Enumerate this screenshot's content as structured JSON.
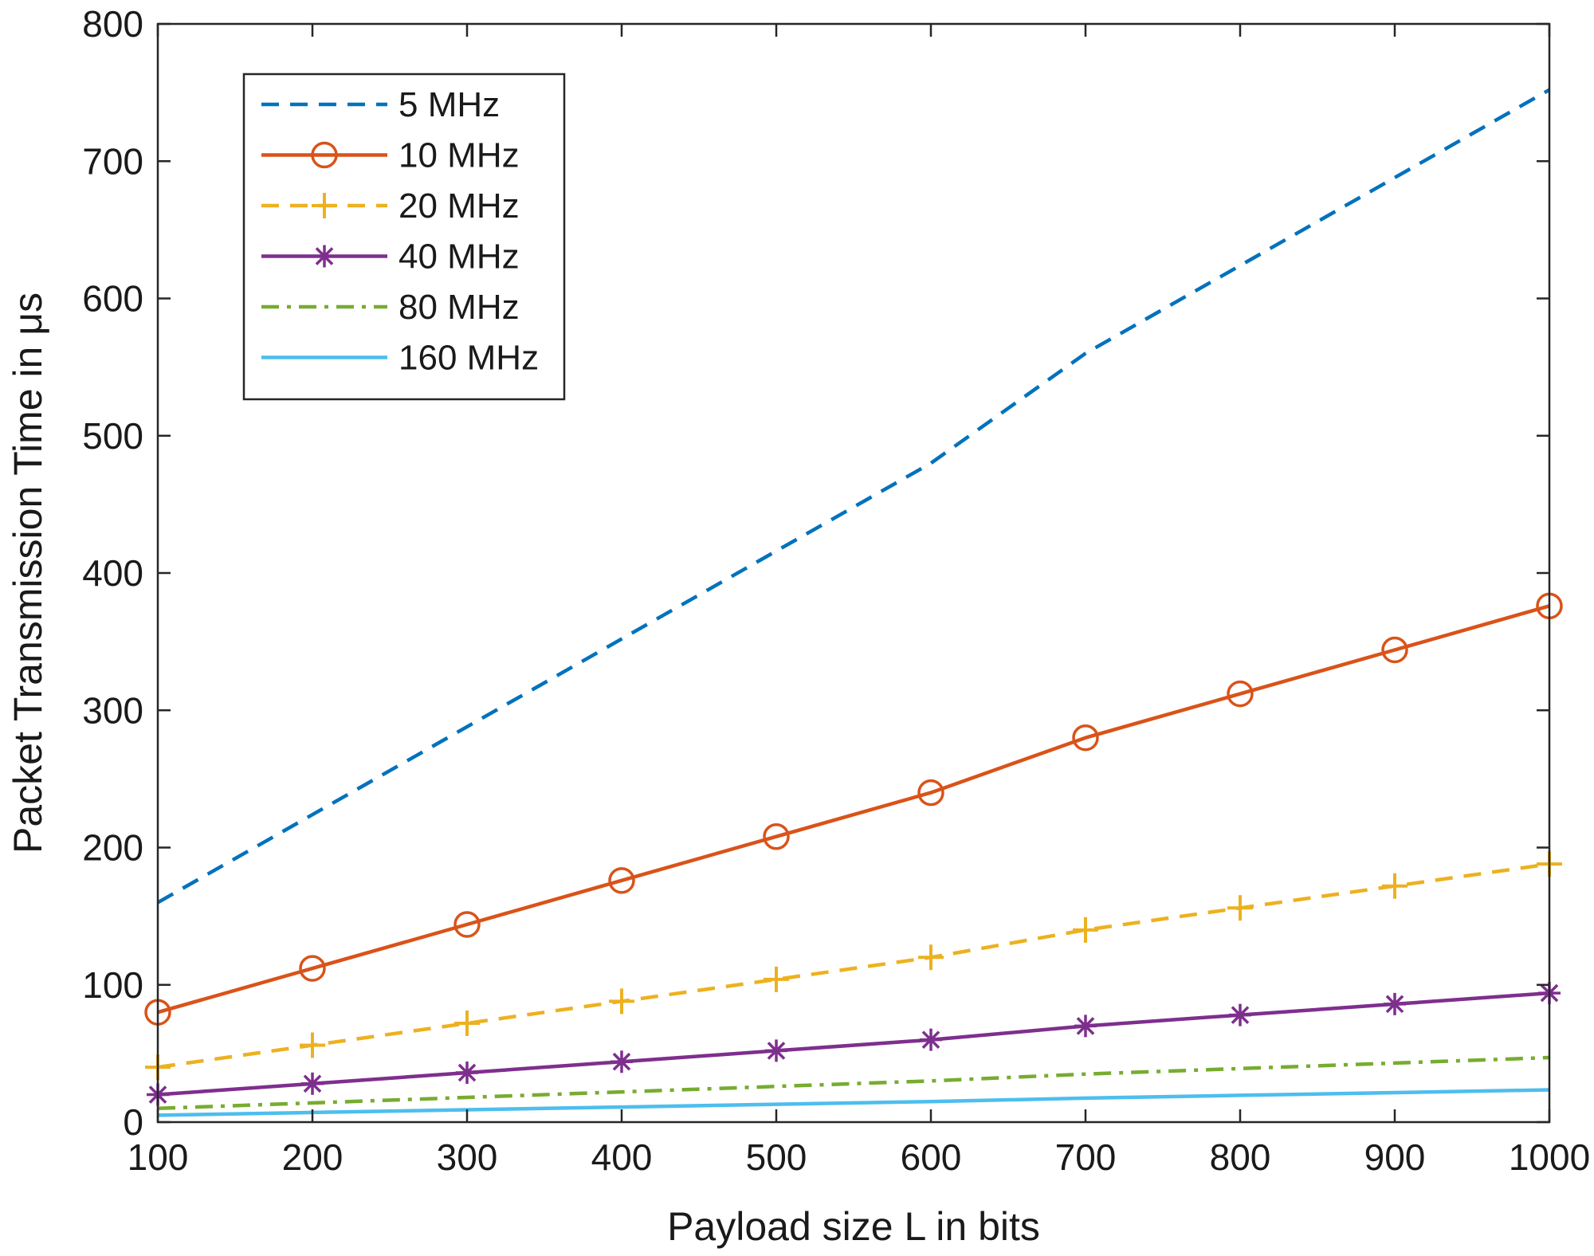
{
  "chart_data": {
    "type": "line",
    "xlabel": "Payload size L in bits",
    "ylabel": "Packet Transmission Time in μs",
    "xlim": [
      100,
      1000
    ],
    "ylim": [
      0,
      800
    ],
    "xticks": [
      "100",
      "200",
      "300",
      "400",
      "500",
      "600",
      "700",
      "800",
      "900",
      "1000"
    ],
    "yticks": [
      "0",
      "100",
      "200",
      "300",
      "400",
      "500",
      "600",
      "700",
      "800"
    ],
    "grid": false,
    "legend_position": "top-left",
    "x": [
      100,
      200,
      300,
      400,
      500,
      600,
      700,
      800,
      900,
      1000
    ],
    "series": [
      {
        "name": "5 MHz",
        "color": "#0072BD",
        "line_style": "dashed",
        "marker": "none",
        "values": [
          160,
          224,
          288,
          352,
          416,
          480,
          560,
          624,
          688,
          752
        ]
      },
      {
        "name": "10 MHz",
        "color": "#D95319",
        "line_style": "solid",
        "marker": "circle",
        "values": [
          80,
          112,
          144,
          176,
          208,
          240,
          280,
          312,
          344,
          376
        ]
      },
      {
        "name": "20 MHz",
        "color": "#EDB120",
        "line_style": "dashed",
        "marker": "plus",
        "values": [
          40,
          56,
          72,
          88,
          104,
          120,
          140,
          156,
          172,
          188
        ]
      },
      {
        "name": "40 MHz",
        "color": "#7E2F8E",
        "line_style": "solid",
        "marker": "asterisk",
        "values": [
          20,
          28,
          36,
          44,
          52,
          60,
          70,
          78,
          86,
          94
        ]
      },
      {
        "name": "80 MHz",
        "color": "#77AC30",
        "line_style": "dashdot",
        "marker": "none",
        "values": [
          10,
          14,
          18,
          22,
          26,
          30,
          35,
          39,
          43,
          47
        ]
      },
      {
        "name": "160 MHz",
        "color": "#4DBEEE",
        "line_style": "solid",
        "marker": "none",
        "values": [
          5,
          7,
          9,
          11,
          13,
          15,
          17.5,
          19.5,
          21.5,
          23.5
        ]
      }
    ]
  }
}
